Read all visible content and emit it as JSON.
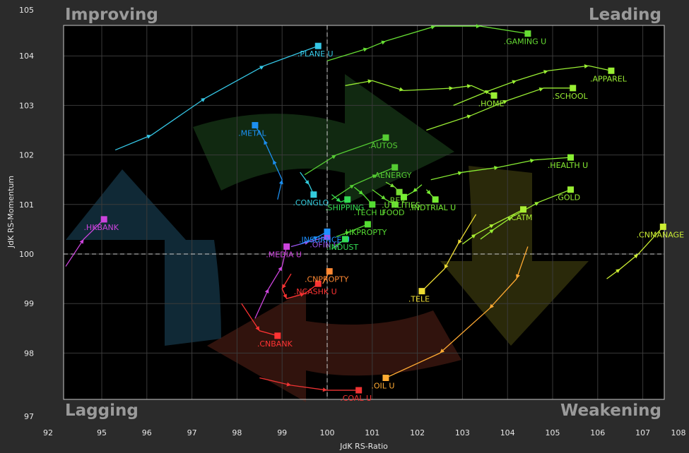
{
  "chart_data": {
    "type": "scatter",
    "title": "",
    "xlabel": "JdK RS-Ratio",
    "ylabel": "JdK RS-Momentum",
    "xlim": [
      92,
      108
    ],
    "ylim": [
      97,
      105
    ],
    "x_ticks": [
      "92",
      "95",
      "96",
      "97",
      "98",
      "99",
      "100",
      "101",
      "102",
      "103",
      "104",
      "105",
      "106",
      "107",
      "108"
    ],
    "y_ticks": [
      "97",
      "98",
      "99",
      "100",
      "101",
      "102",
      "103",
      "104",
      "105"
    ],
    "grid": true,
    "quadrants": {
      "top_left": "Improving",
      "top_right": "Leading",
      "bottom_left": "Lagging",
      "bottom_right": "Weakening"
    },
    "quadrant_colors": {
      "improving": "#1e4a63",
      "leading": "#1f4a1f",
      "weakening": "#4d4a12",
      "lagging": "#5a2318"
    },
    "series": [
      {
        "name": ".PLANE U",
        "color": "#35c7e6",
        "points": [
          [
            95.3,
            102.1
          ],
          [
            96.1,
            102.4
          ],
          [
            97.3,
            103.15
          ],
          [
            98.6,
            103.8
          ],
          [
            99.8,
            104.2
          ]
        ]
      },
      {
        "name": ".GAMING U",
        "color": "#66dd33",
        "points": [
          [
            100.0,
            103.9
          ],
          [
            100.9,
            104.15
          ],
          [
            101.3,
            104.3
          ],
          [
            102.4,
            104.6
          ],
          [
            103.4,
            104.6
          ],
          [
            104.45,
            104.45
          ]
        ]
      },
      {
        "name": ".HOME",
        "color": "#99ee33",
        "points": [
          [
            100.4,
            103.4
          ],
          [
            101.0,
            103.5
          ],
          [
            101.7,
            103.3
          ],
          [
            102.8,
            103.35
          ],
          [
            103.2,
            103.4
          ],
          [
            103.7,
            103.2
          ]
        ]
      },
      {
        "name": ".APPAREL",
        "color": "#99ee33",
        "points": [
          [
            102.8,
            103.0
          ],
          [
            103.6,
            103.3
          ],
          [
            104.2,
            103.5
          ],
          [
            104.9,
            103.7
          ],
          [
            105.8,
            103.8
          ],
          [
            106.3,
            103.7
          ]
        ]
      },
      {
        "name": ".SCHOOL",
        "color": "#99ee33",
        "points": [
          [
            102.2,
            102.5
          ],
          [
            103.2,
            102.8
          ],
          [
            104.0,
            103.1
          ],
          [
            104.8,
            103.35
          ],
          [
            105.45,
            103.35
          ]
        ]
      },
      {
        "name": ".AUTOS",
        "color": "#55cc33",
        "points": [
          [
            99.5,
            101.6
          ],
          [
            100.2,
            102.0
          ],
          [
            101.3,
            102.35
          ]
        ]
      },
      {
        "name": ".AENERGY",
        "color": "#55cc33",
        "points": [
          [
            100.1,
            101.1
          ],
          [
            100.6,
            101.4
          ],
          [
            101.1,
            101.6
          ],
          [
            101.5,
            101.75
          ]
        ]
      },
      {
        "name": ".HEALTH U",
        "color": "#88ee33",
        "points": [
          [
            102.3,
            101.5
          ],
          [
            103.0,
            101.65
          ],
          [
            103.8,
            101.75
          ],
          [
            104.6,
            101.9
          ],
          [
            105.4,
            101.95
          ]
        ]
      },
      {
        "name": ".GOLD",
        "color": "#99ee33",
        "points": [
          [
            103.4,
            100.3
          ],
          [
            103.7,
            100.5
          ],
          [
            104.1,
            100.75
          ],
          [
            104.7,
            101.05
          ],
          [
            105.4,
            101.3
          ]
        ]
      },
      {
        "name": ".CNMANAGE",
        "color": "#ccee33",
        "points": [
          [
            106.2,
            99.5
          ],
          [
            106.5,
            99.7
          ],
          [
            106.9,
            100.0
          ],
          [
            107.45,
            100.55
          ]
        ]
      },
      {
        "name": ".CATM",
        "color": "#aaee33",
        "points": [
          [
            103.0,
            100.2
          ],
          [
            103.3,
            100.4
          ],
          [
            103.7,
            100.6
          ],
          [
            104.35,
            100.9
          ]
        ]
      },
      {
        "name": ".TELE",
        "color": "#eedd33",
        "points": [
          [
            103.3,
            100.8
          ],
          [
            102.9,
            100.2
          ],
          [
            102.6,
            99.7
          ],
          [
            102.1,
            99.25
          ]
        ]
      },
      {
        "name": ".OIL U",
        "color": "#ffaa33",
        "points": [
          [
            104.45,
            100.15
          ],
          [
            104.2,
            99.5
          ],
          [
            103.6,
            98.9
          ],
          [
            102.5,
            98.0
          ],
          [
            101.3,
            97.5
          ]
        ]
      },
      {
        "name": ".COAL U",
        "color": "#ee3333",
        "points": [
          [
            98.5,
            97.5
          ],
          [
            99.2,
            97.35
          ],
          [
            100.0,
            97.25
          ],
          [
            100.7,
            97.25
          ]
        ]
      },
      {
        "name": ".CNBANK",
        "color": "#ff3333",
        "points": [
          [
            98.1,
            99.0
          ],
          [
            98.5,
            98.45
          ],
          [
            98.9,
            98.35
          ]
        ]
      },
      {
        "name": ".NCASHK U",
        "color": "#ff3333",
        "points": [
          [
            99.2,
            99.6
          ],
          [
            99.0,
            99.3
          ],
          [
            99.1,
            99.1
          ],
          [
            99.5,
            99.2
          ],
          [
            99.8,
            99.4
          ]
        ]
      },
      {
        "name": ".CNPROPTY",
        "color": "#ff8833",
        "points": [
          [
            99.9,
            99.4
          ],
          [
            100.05,
            99.65
          ]
        ]
      },
      {
        "name": ".HKBANK",
        "color": "#cc44dd",
        "points": [
          [
            94.2,
            99.75
          ],
          [
            94.6,
            100.3
          ],
          [
            95.05,
            100.7
          ]
        ]
      },
      {
        "name": ".MEDIA U",
        "color": "#cc44dd",
        "points": [
          [
            98.4,
            98.7
          ],
          [
            98.7,
            99.3
          ],
          [
            99.0,
            99.75
          ],
          [
            99.1,
            100.15
          ]
        ]
      },
      {
        "name": ".OFIN U",
        "color": "#9955ee",
        "points": [
          [
            99.2,
            100.15
          ],
          [
            99.6,
            100.25
          ],
          [
            100.0,
            100.35
          ]
        ]
      },
      {
        "name": ".METAL",
        "color": "#1c8ff0",
        "points": [
          [
            98.9,
            101.1
          ],
          [
            99.0,
            101.5
          ],
          [
            98.8,
            101.9
          ],
          [
            98.6,
            102.3
          ],
          [
            98.4,
            102.6
          ]
        ]
      },
      {
        "name": ".CONGLO",
        "color": "#33ccdd",
        "points": [
          [
            99.4,
            101.65
          ],
          [
            99.6,
            101.4
          ],
          [
            99.7,
            101.2
          ]
        ]
      },
      {
        "name": ".INSURNCE U",
        "color": "#1e90ff",
        "points": [
          [
            99.4,
            100.2
          ],
          [
            99.8,
            100.35
          ],
          [
            100.0,
            100.45
          ]
        ]
      },
      {
        "name": ".SHIPPING",
        "color": "#33dd55",
        "points": [
          [
            100.1,
            101.2
          ],
          [
            100.3,
            101.05
          ],
          [
            100.45,
            101.1
          ]
        ]
      },
      {
        "name": ".INDUST",
        "color": "#33dd55",
        "points": [
          [
            100.1,
            100.1
          ],
          [
            100.4,
            100.3
          ]
        ]
      },
      {
        "name": ".HKPROPTY",
        "color": "#55dd33",
        "points": [
          [
            100.2,
            100.35
          ],
          [
            100.5,
            100.45
          ],
          [
            100.9,
            100.6
          ]
        ]
      },
      {
        "name": ".TECH U",
        "color": "#55dd33",
        "points": [
          [
            100.6,
            101.35
          ],
          [
            100.8,
            101.2
          ],
          [
            101.0,
            101.0
          ]
        ]
      },
      {
        "name": ".FOOD",
        "color": "#66dd33",
        "points": [
          [
            101.0,
            101.3
          ],
          [
            101.3,
            101.1
          ],
          [
            101.5,
            101.0
          ]
        ]
      },
      {
        "name": ".REV",
        "color": "#77dd33",
        "points": [
          [
            101.3,
            101.45
          ],
          [
            101.5,
            101.35
          ],
          [
            101.6,
            101.25
          ]
        ]
      },
      {
        "name": ".UTILITIES",
        "color": "#77ee33",
        "points": [
          [
            102.1,
            101.4
          ],
          [
            101.9,
            101.25
          ],
          [
            101.7,
            101.15
          ]
        ]
      },
      {
        "name": ".INDTRIAL U",
        "color": "#77ee33",
        "points": [
          [
            102.2,
            101.3
          ],
          [
            102.3,
            101.2
          ],
          [
            102.4,
            101.1
          ]
        ]
      }
    ]
  }
}
